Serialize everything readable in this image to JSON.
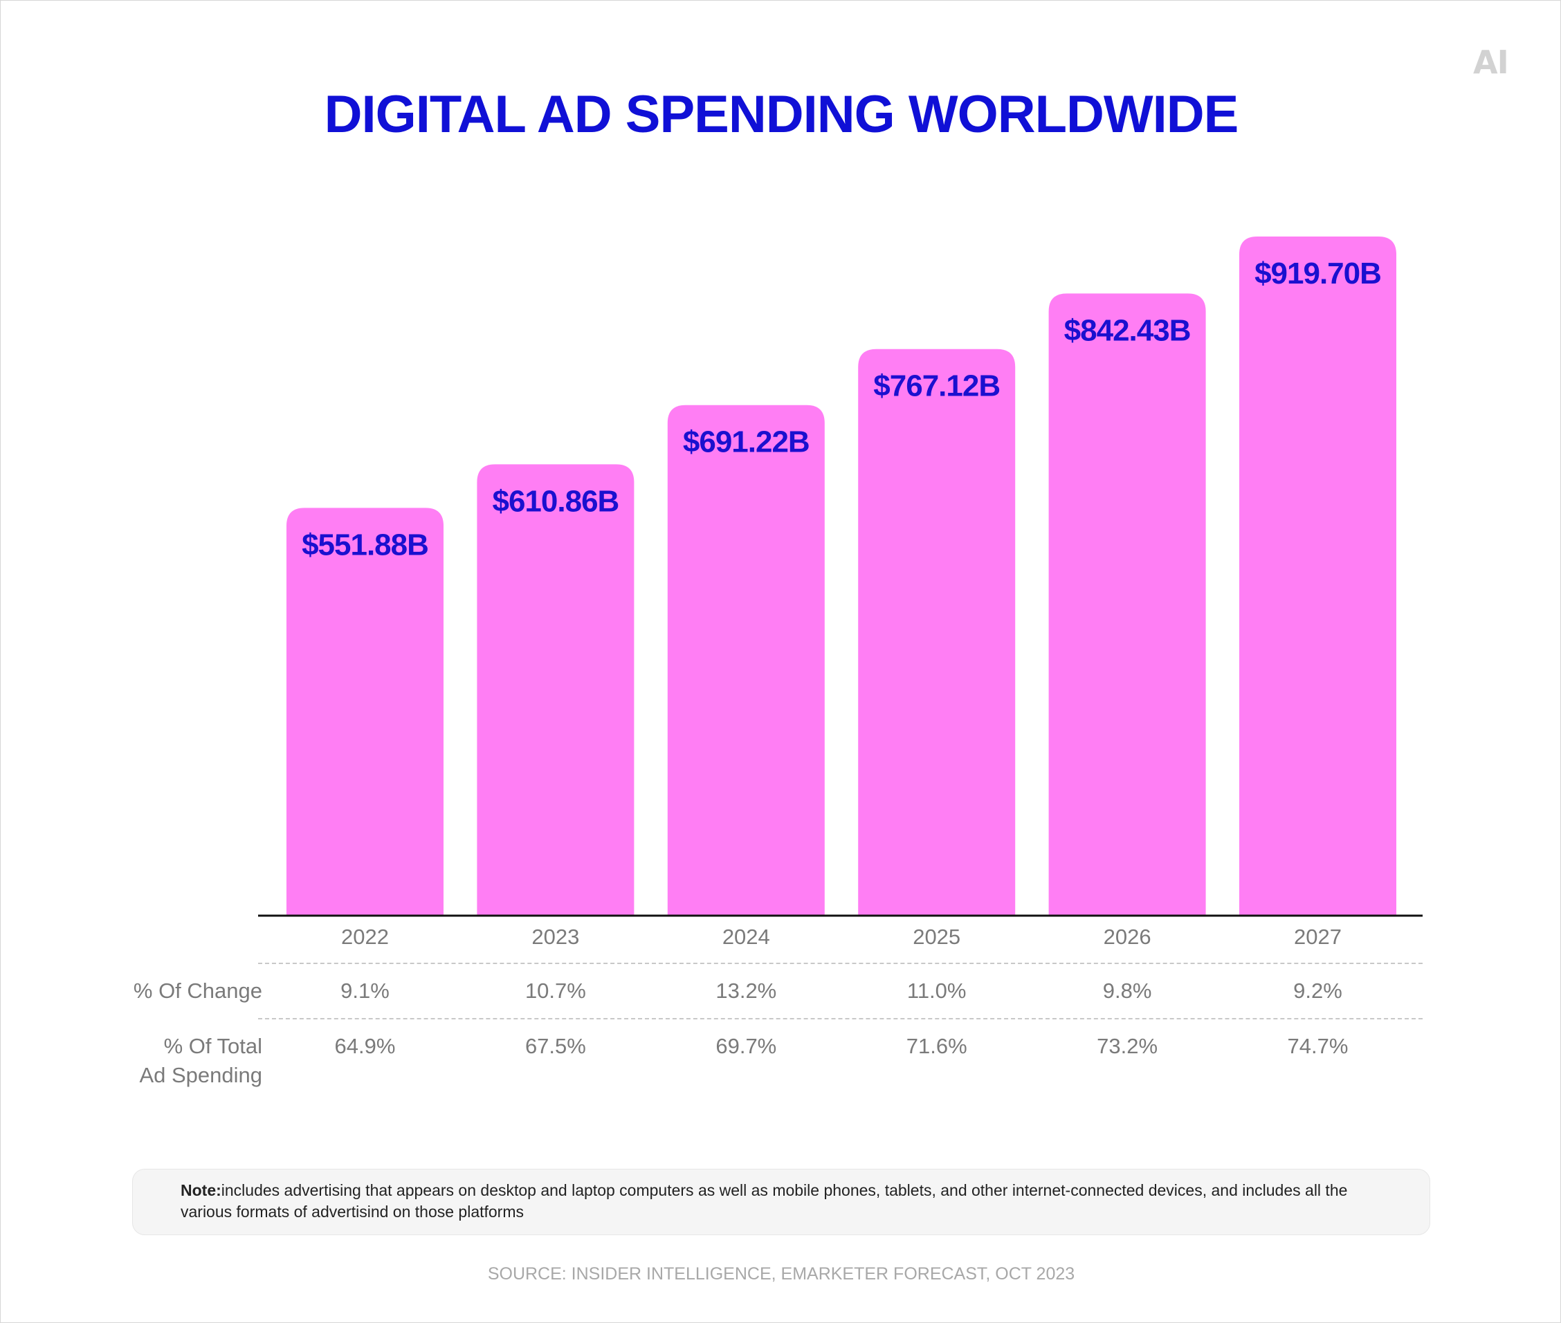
{
  "logo": {
    "text": "AI"
  },
  "title": "DIGITAL AD SPENDING WORLDWIDE",
  "colors": {
    "bar": "#ff7ef4",
    "title": "#1010d6",
    "value_label": "#1a10cf",
    "axis": "#111111",
    "muted_text": "#7a7a7a"
  },
  "chart_data": {
    "type": "bar",
    "title": "DIGITAL AD SPENDING WORLDWIDE",
    "categories": [
      "2022",
      "2023",
      "2024",
      "2025",
      "2026",
      "2027"
    ],
    "values": [
      551.88,
      610.86,
      691.22,
      767.12,
      842.43,
      919.7
    ],
    "value_labels": [
      "$551.88B",
      "$610.86B",
      "$691.22B",
      "$767.12B",
      "$842.43B",
      "$919.70B"
    ],
    "ylim": [
      0,
      919.7
    ],
    "grid": false,
    "legend": "none"
  },
  "table": {
    "rows": [
      {
        "label": "% Of Change",
        "values": [
          "9.1%",
          "10.7%",
          "13.2%",
          "11.0%",
          "9.8%",
          "9.2%"
        ]
      },
      {
        "label_lines": [
          "% Of Total",
          "Ad Spending"
        ],
        "values": [
          "64.9%",
          "67.5%",
          "69.7%",
          "71.6%",
          "73.2%",
          "74.7%"
        ]
      }
    ]
  },
  "note": {
    "label": "Note:",
    "text": "includes advertising that appears on desktop and laptop  computers as well as mobile phones, tablets, and other internet-connected devices, and includes all the various formats of advertisind on those platforms"
  },
  "source": "SOURCE: INSIDER INTELLIGENCE, EMARKETER FORECAST, OCT  2023"
}
